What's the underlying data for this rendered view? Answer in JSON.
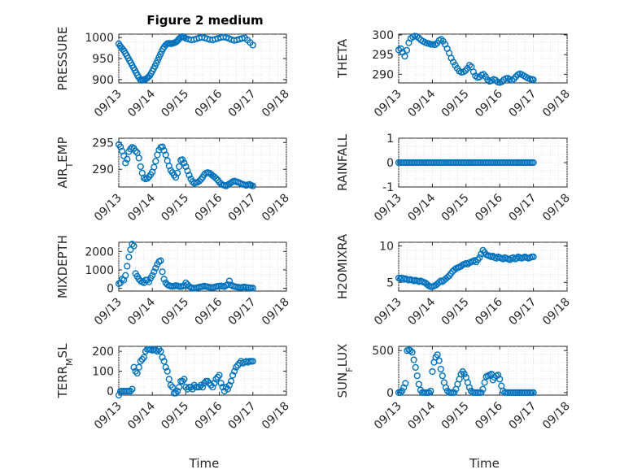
{
  "figure": {
    "title": "Figure 2 medium",
    "marker_color": "#0072bd",
    "axis_color": "#262626"
  },
  "chart_data": [
    {
      "type": "scatter",
      "ylabel": "PRESSURE",
      "xlabel": "",
      "title": "Figure 2 medium",
      "x_ticks": [
        "09/13",
        "09/14",
        "09/15",
        "09/16",
        "09/17",
        "09/18"
      ],
      "xlim": [
        0,
        5
      ],
      "ylim": [
        892,
        1008
      ],
      "y_ticks": [
        900,
        950,
        1000
      ],
      "grid": true,
      "x": [
        0.0,
        0.04,
        0.08,
        0.12,
        0.16,
        0.2,
        0.24,
        0.28,
        0.32,
        0.36,
        0.4,
        0.44,
        0.48,
        0.52,
        0.56,
        0.6,
        0.64,
        0.68,
        0.72,
        0.76,
        0.8,
        0.84,
        0.88,
        0.92,
        0.96,
        1.0,
        1.04,
        1.08,
        1.12,
        1.16,
        1.2,
        1.24,
        1.28,
        1.32,
        1.36,
        1.4,
        1.44,
        1.48,
        1.52,
        1.56,
        1.6,
        1.64,
        1.68,
        1.72,
        1.76,
        1.8,
        1.84,
        1.88,
        1.92,
        1.96,
        2.0,
        2.08,
        2.16,
        2.24,
        2.32,
        2.4,
        2.48,
        2.56,
        2.64,
        2.72,
        2.8,
        2.88,
        2.96,
        3.04,
        3.12,
        3.2,
        3.28,
        3.36,
        3.44,
        3.52,
        3.6,
        3.68,
        3.76,
        3.84,
        3.92,
        4.0
      ],
      "y": [
        985,
        980,
        976,
        972,
        968,
        962,
        957,
        951,
        945,
        940,
        934,
        928,
        922,
        916,
        910,
        905,
        900,
        898,
        899,
        900,
        901,
        903,
        906,
        909,
        914,
        920,
        926,
        932,
        939,
        946,
        953,
        960,
        967,
        973,
        978,
        982,
        985,
        986,
        986,
        985,
        986,
        987,
        988,
        990,
        993,
        997,
        1000,
        1002,
        1002,
        1000,
        998,
        996,
        994,
        995,
        997,
        999,
        1000,
        999,
        997,
        995,
        994,
        996,
        998,
        1000,
        1001,
        1000,
        998,
        995,
        993,
        994,
        996,
        998,
        999,
        994,
        988,
        982
      ]
    },
    {
      "type": "scatter",
      "ylabel": "THETA",
      "xlabel": "",
      "x_ticks": [
        "09/13",
        "09/14",
        "09/15",
        "09/16",
        "09/17",
        "09/18"
      ],
      "xlim": [
        0,
        5
      ],
      "ylim": [
        287.8,
        300.2
      ],
      "y_ticks": [
        290,
        295,
        300
      ],
      "grid": true,
      "x": [
        0.0,
        0.06,
        0.12,
        0.18,
        0.24,
        0.3,
        0.36,
        0.42,
        0.48,
        0.54,
        0.6,
        0.66,
        0.72,
        0.78,
        0.84,
        0.9,
        0.96,
        1.02,
        1.08,
        1.14,
        1.2,
        1.26,
        1.32,
        1.38,
        1.44,
        1.5,
        1.56,
        1.62,
        1.68,
        1.74,
        1.8,
        1.86,
        1.92,
        1.98,
        2.04,
        2.1,
        2.16,
        2.22,
        2.28,
        2.34,
        2.4,
        2.46,
        2.52,
        2.58,
        2.64,
        2.7,
        2.76,
        2.82,
        2.88,
        2.94,
        3.0,
        3.06,
        3.12,
        3.18,
        3.24,
        3.3,
        3.36,
        3.42,
        3.48,
        3.54,
        3.6,
        3.66,
        3.72,
        3.78,
        3.84,
        3.9,
        3.96,
        4.0
      ],
      "y": [
        296.2,
        296.5,
        295.6,
        294.6,
        296.1,
        298.0,
        299.1,
        299.5,
        299.7,
        299.6,
        299.2,
        298.7,
        298.4,
        298.1,
        297.9,
        297.8,
        297.6,
        297.6,
        297.5,
        297.9,
        298.6,
        298.9,
        298.4,
        297.6,
        296.5,
        295.4,
        294.1,
        293.1,
        292.3,
        291.5,
        290.8,
        290.5,
        290.6,
        290.9,
        291.5,
        292.3,
        291.9,
        290.6,
        289.6,
        289.2,
        289.3,
        289.8,
        290.0,
        289.4,
        288.6,
        288.2,
        288.4,
        288.7,
        288.5,
        288.0,
        287.9,
        288.1,
        288.6,
        288.9,
        289.0,
        288.7,
        288.5,
        288.8,
        289.4,
        289.9,
        290.1,
        289.9,
        289.6,
        289.3,
        289.0,
        288.8,
        288.7,
        288.6
      ]
    },
    {
      "type": "scatter",
      "ylabel": "AIR_TEMP",
      "xlabel": "",
      "x_ticks": [
        "09/13",
        "09/14",
        "09/15",
        "09/16",
        "09/17",
        "09/18"
      ],
      "xlim": [
        0,
        5
      ],
      "ylim": [
        286.7,
        295.8
      ],
      "y_ticks": [
        290,
        295
      ],
      "grid": true,
      "x": [
        0.0,
        0.05,
        0.1,
        0.15,
        0.2,
        0.25,
        0.3,
        0.35,
        0.4,
        0.45,
        0.5,
        0.55,
        0.6,
        0.65,
        0.7,
        0.75,
        0.8,
        0.85,
        0.9,
        0.95,
        1.0,
        1.05,
        1.1,
        1.15,
        1.2,
        1.25,
        1.3,
        1.35,
        1.4,
        1.45,
        1.5,
        1.55,
        1.6,
        1.65,
        1.7,
        1.75,
        1.8,
        1.85,
        1.9,
        1.95,
        2.0,
        2.05,
        2.1,
        2.15,
        2.2,
        2.25,
        2.3,
        2.35,
        2.4,
        2.45,
        2.5,
        2.55,
        2.6,
        2.65,
        2.7,
        2.75,
        2.8,
        2.85,
        2.9,
        2.95,
        3.0,
        3.05,
        3.1,
        3.15,
        3.2,
        3.25,
        3.3,
        3.35,
        3.4,
        3.45,
        3.5,
        3.55,
        3.6,
        3.65,
        3.7,
        3.75,
        3.8,
        3.85,
        3.9,
        3.95,
        4.0
      ],
      "y": [
        294.6,
        294.2,
        293.4,
        292.5,
        291.2,
        291.9,
        293.3,
        293.8,
        294.1,
        293.9,
        293.4,
        293.1,
        292.1,
        290.5,
        289.3,
        288.4,
        288.2,
        288.3,
        288.6,
        289.0,
        289.5,
        290.4,
        291.5,
        292.7,
        293.6,
        294.1,
        294.2,
        293.5,
        292.7,
        291.6,
        290.6,
        289.8,
        289.4,
        288.9,
        288.5,
        289.3,
        290.5,
        291.7,
        291.8,
        291.2,
        290.5,
        289.7,
        288.9,
        288.2,
        287.7,
        287.4,
        287.5,
        287.6,
        287.8,
        288.1,
        288.5,
        289.0,
        289.3,
        289.4,
        289.3,
        289.1,
        288.8,
        288.6,
        288.3,
        288.0,
        287.6,
        287.3,
        287.1,
        287.0,
        286.9,
        287.1,
        287.3,
        287.5,
        287.7,
        287.8,
        287.7,
        287.6,
        287.5,
        287.3,
        287.2,
        287.1,
        287.0,
        287.1,
        287.2,
        287.0,
        286.9
      ]
    },
    {
      "type": "scatter",
      "ylabel": "RAINFALL",
      "xlabel": "",
      "x_ticks": [
        "09/13",
        "09/14",
        "09/15",
        "09/16",
        "09/17",
        "09/18"
      ],
      "xlim": [
        0,
        5
      ],
      "ylim": [
        -1,
        1
      ],
      "y_ticks": [
        -1,
        0,
        1
      ],
      "grid": true,
      "x_start": 0.0,
      "x_end": 4.0,
      "count": 81,
      "constant_value": 0
    },
    {
      "type": "scatter",
      "ylabel": "MIXDEPTH",
      "xlabel": "",
      "x_ticks": [
        "09/13",
        "09/14",
        "09/15",
        "09/16",
        "09/17",
        "09/18"
      ],
      "xlim": [
        0,
        5
      ],
      "ylim": [
        -150,
        2500
      ],
      "y_ticks": [
        0,
        1000,
        2000
      ],
      "grid": true,
      "x": [
        0.0,
        0.05,
        0.1,
        0.15,
        0.2,
        0.25,
        0.3,
        0.35,
        0.4,
        0.45,
        0.5,
        0.55,
        0.6,
        0.65,
        0.7,
        0.75,
        0.8,
        0.85,
        0.9,
        0.95,
        1.0,
        1.05,
        1.1,
        1.15,
        1.2,
        1.25,
        1.3,
        1.35,
        1.4,
        1.45,
        1.5,
        1.55,
        1.6,
        1.65,
        1.7,
        1.75,
        1.8,
        1.85,
        1.9,
        1.95,
        2.0,
        2.05,
        2.1,
        2.15,
        2.2,
        2.25,
        2.3,
        2.35,
        2.4,
        2.45,
        2.5,
        2.55,
        2.6,
        2.65,
        2.7,
        2.75,
        2.8,
        2.85,
        2.9,
        2.95,
        3.0,
        3.05,
        3.1,
        3.15,
        3.2,
        3.25,
        3.3,
        3.35,
        3.4,
        3.45,
        3.5,
        3.55,
        3.6,
        3.65,
        3.7,
        3.75,
        3.8,
        3.85,
        3.9,
        3.95,
        4.0
      ],
      "y": [
        250,
        300,
        500,
        450,
        700,
        1200,
        1700,
        2100,
        2400,
        2300,
        800,
        650,
        500,
        400,
        350,
        300,
        450,
        450,
        350,
        550,
        700,
        900,
        1100,
        1300,
        1450,
        1500,
        900,
        500,
        300,
        200,
        150,
        120,
        100,
        120,
        150,
        130,
        100,
        90,
        110,
        150,
        300,
        200,
        100,
        50,
        20,
        0,
        20,
        40,
        60,
        80,
        100,
        120,
        100,
        80,
        60,
        50,
        40,
        60,
        90,
        110,
        120,
        130,
        110,
        90,
        150,
        200,
        400,
        180,
        120,
        100,
        80,
        60,
        50,
        40,
        60,
        80,
        50,
        40,
        30,
        20,
        10
      ]
    },
    {
      "type": "scatter",
      "ylabel": "H2OMIXRA",
      "xlabel": "",
      "x_ticks": [
        "09/13",
        "09/14",
        "09/15",
        "09/16",
        "09/17",
        "09/18"
      ],
      "xlim": [
        0,
        5
      ],
      "ylim": [
        3.8,
        10.5
      ],
      "y_ticks": [
        5,
        10
      ],
      "grid": true,
      "x": [
        0.0,
        0.05,
        0.1,
        0.15,
        0.2,
        0.25,
        0.3,
        0.35,
        0.4,
        0.45,
        0.5,
        0.55,
        0.6,
        0.65,
        0.7,
        0.75,
        0.8,
        0.85,
        0.9,
        0.95,
        1.0,
        1.05,
        1.1,
        1.15,
        1.2,
        1.25,
        1.3,
        1.35,
        1.4,
        1.45,
        1.5,
        1.55,
        1.6,
        1.65,
        1.7,
        1.75,
        1.8,
        1.85,
        1.9,
        1.95,
        2.0,
        2.05,
        2.1,
        2.15,
        2.2,
        2.25,
        2.3,
        2.35,
        2.4,
        2.45,
        2.5,
        2.55,
        2.6,
        2.65,
        2.7,
        2.75,
        2.8,
        2.85,
        2.9,
        2.95,
        3.0,
        3.05,
        3.1,
        3.15,
        3.2,
        3.25,
        3.3,
        3.35,
        3.4,
        3.45,
        3.5,
        3.55,
        3.6,
        3.65,
        3.7,
        3.75,
        3.8,
        3.85,
        3.9,
        3.95,
        4.0
      ],
      "y": [
        5.6,
        5.5,
        5.6,
        5.4,
        5.5,
        5.4,
        5.3,
        5.4,
        5.3,
        5.2,
        5.3,
        5.2,
        5.1,
        5.2,
        5.1,
        5.0,
        4.9,
        4.7,
        4.5,
        4.4,
        4.4,
        4.5,
        4.6,
        4.8,
        5.0,
        5.2,
        5.1,
        5.3,
        5.5,
        5.7,
        5.9,
        6.2,
        6.5,
        6.7,
        6.9,
        7.0,
        7.1,
        7.2,
        7.4,
        7.5,
        7.6,
        7.5,
        7.7,
        7.8,
        7.9,
        8.0,
        7.8,
        8.1,
        8.4,
        8.9,
        9.4,
        9.1,
        8.8,
        8.7,
        8.6,
        8.5,
        8.6,
        8.4,
        8.3,
        8.5,
        8.4,
        8.3,
        8.2,
        8.4,
        8.3,
        8.2,
        8.1,
        8.3,
        8.4,
        8.2,
        8.3,
        8.5,
        8.4,
        8.3,
        8.4,
        8.5,
        8.4,
        8.3,
        8.4,
        8.5,
        8.5
      ]
    },
    {
      "type": "scatter",
      "ylabel": "TERR_MSL",
      "xlabel": "Time",
      "x_ticks": [
        "09/13",
        "09/14",
        "09/15",
        "09/16",
        "09/17",
        "09/18"
      ],
      "xlim": [
        0,
        5
      ],
      "ylim": [
        -20,
        225
      ],
      "y_ticks": [
        0,
        100,
        200
      ],
      "grid": true,
      "x": [
        0.0,
        0.05,
        0.1,
        0.15,
        0.2,
        0.25,
        0.3,
        0.35,
        0.4,
        0.45,
        0.5,
        0.55,
        0.6,
        0.65,
        0.7,
        0.75,
        0.8,
        0.85,
        0.9,
        0.95,
        1.0,
        1.05,
        1.1,
        1.15,
        1.2,
        1.25,
        1.3,
        1.35,
        1.4,
        1.45,
        1.5,
        1.55,
        1.6,
        1.65,
        1.7,
        1.75,
        1.8,
        1.85,
        1.9,
        1.95,
        2.0,
        2.05,
        2.1,
        2.15,
        2.2,
        2.25,
        2.3,
        2.35,
        2.4,
        2.45,
        2.5,
        2.55,
        2.6,
        2.65,
        2.7,
        2.75,
        2.8,
        2.85,
        2.9,
        2.95,
        3.0,
        3.05,
        3.1,
        3.15,
        3.2,
        3.25,
        3.3,
        3.35,
        3.4,
        3.45,
        3.5,
        3.55,
        3.6,
        3.65,
        3.7,
        3.75,
        3.8,
        3.85,
        3.9,
        3.95,
        4.0
      ],
      "y": [
        -20,
        0,
        0,
        0,
        0,
        0,
        0,
        0,
        10,
        120,
        100,
        90,
        120,
        150,
        160,
        170,
        200,
        210,
        210,
        210,
        205,
        210,
        205,
        200,
        210,
        200,
        170,
        150,
        120,
        100,
        60,
        30,
        20,
        -10,
        -10,
        0,
        20,
        50,
        50,
        60,
        20,
        10,
        20,
        20,
        10,
        30,
        20,
        20,
        20,
        30,
        20,
        40,
        50,
        50,
        40,
        30,
        20,
        40,
        60,
        70,
        80,
        40,
        20,
        0,
        20,
        10,
        30,
        50,
        80,
        100,
        120,
        130,
        140,
        150,
        140,
        145,
        150,
        145,
        150,
        150,
        150
      ]
    },
    {
      "type": "scatter",
      "ylabel": "SUN_FLUX",
      "xlabel": "Time",
      "x_ticks": [
        "09/13",
        "09/14",
        "09/15",
        "09/16",
        "09/17",
        "09/18"
      ],
      "xlim": [
        0,
        5
      ],
      "ylim": [
        -30,
        550
      ],
      "y_ticks": [
        0,
        500
      ],
      "grid": true,
      "x": [
        0.0,
        0.05,
        0.1,
        0.15,
        0.2,
        0.25,
        0.3,
        0.35,
        0.4,
        0.45,
        0.5,
        0.55,
        0.6,
        0.65,
        0.7,
        0.75,
        0.8,
        0.85,
        0.9,
        0.95,
        1.0,
        1.05,
        1.1,
        1.15,
        1.2,
        1.25,
        1.3,
        1.35,
        1.4,
        1.45,
        1.5,
        1.55,
        1.6,
        1.65,
        1.7,
        1.75,
        1.8,
        1.85,
        1.9,
        1.95,
        2.0,
        2.05,
        2.1,
        2.15,
        2.2,
        2.25,
        2.3,
        2.35,
        2.4,
        2.45,
        2.5,
        2.55,
        2.6,
        2.65,
        2.7,
        2.75,
        2.8,
        2.85,
        2.9,
        2.95,
        3.0,
        3.05,
        3.1,
        3.15,
        3.2,
        3.25,
        3.3,
        3.35,
        3.4,
        3.45,
        3.5,
        3.55,
        3.6,
        3.65,
        3.7,
        3.75,
        3.8,
        3.85,
        3.9,
        3.95,
        4.0
      ],
      "y": [
        0,
        0,
        20,
        60,
        110,
        500,
        510,
        500,
        480,
        390,
        300,
        200,
        100,
        30,
        0,
        0,
        0,
        0,
        0,
        20,
        250,
        360,
        420,
        450,
        380,
        280,
        200,
        120,
        60,
        20,
        0,
        0,
        0,
        0,
        40,
        100,
        160,
        220,
        250,
        220,
        180,
        120,
        60,
        20,
        0,
        0,
        0,
        0,
        0,
        0,
        40,
        120,
        190,
        200,
        210,
        220,
        150,
        180,
        200,
        210,
        160,
        80,
        20,
        0,
        0,
        0,
        0,
        0,
        0,
        0,
        0,
        0,
        0,
        0,
        0,
        0,
        0,
        0,
        0,
        0,
        0
      ]
    }
  ]
}
